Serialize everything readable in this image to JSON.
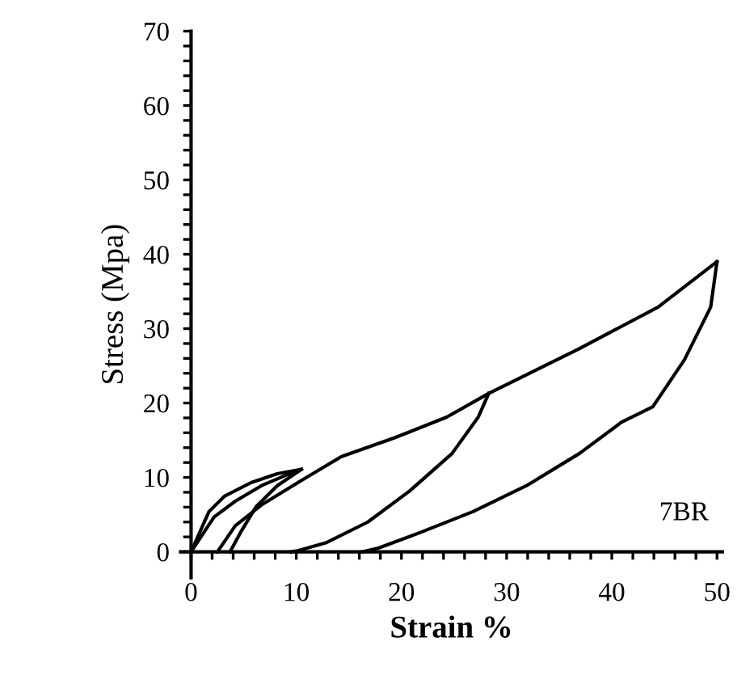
{
  "chart_data": {
    "type": "line",
    "xlabel": "Strain %",
    "ylabel": "Stress (Mpa)",
    "xlim": [
      -1,
      50.5
    ],
    "ylim": [
      -3.5,
      70
    ],
    "xticks": [
      0,
      {
        "value": 2,
        "label": null
      },
      {
        "value": 4,
        "label": null
      },
      {
        "value": 6,
        "label": null
      },
      {
        "value": 8,
        "label": null
      },
      10,
      {
        "value": 12,
        "label": null
      },
      {
        "value": 14,
        "label": null
      },
      {
        "value": 16,
        "label": null
      },
      {
        "value": 18,
        "label": null
      },
      20,
      {
        "value": 22,
        "label": null
      },
      {
        "value": 24,
        "label": null
      },
      {
        "value": 26,
        "label": null
      },
      {
        "value": 28,
        "label": null
      },
      30,
      {
        "value": 32,
        "label": null
      },
      {
        "value": 34,
        "label": null
      },
      {
        "value": 36,
        "label": null
      },
      {
        "value": 38,
        "label": null
      },
      40,
      {
        "value": 42,
        "label": null
      },
      {
        "value": 44,
        "label": null
      },
      {
        "value": 46,
        "label": null
      },
      {
        "value": 48,
        "label": null
      },
      50
    ],
    "yticks": [
      0,
      {
        "value": 2,
        "label": null
      },
      {
        "value": 4,
        "label": null
      },
      {
        "value": 6,
        "label": null
      },
      {
        "value": 8,
        "label": null
      },
      10,
      {
        "value": 12,
        "label": null
      },
      {
        "value": 14,
        "label": null
      },
      {
        "value": 16,
        "label": null
      },
      {
        "value": 18,
        "label": null
      },
      20,
      {
        "value": 22,
        "label": null
      },
      {
        "value": 24,
        "label": null
      },
      {
        "value": 26,
        "label": null
      },
      {
        "value": 28,
        "label": null
      },
      30,
      {
        "value": 32,
        "label": null
      },
      {
        "value": 34,
        "label": null
      },
      {
        "value": 36,
        "label": null
      },
      {
        "value": 38,
        "label": null
      },
      40,
      {
        "value": 42,
        "label": null
      },
      {
        "value": 44,
        "label": null
      },
      {
        "value": 46,
        "label": null
      },
      {
        "value": 48,
        "label": null
      },
      50,
      {
        "value": 52,
        "label": null
      },
      {
        "value": 54,
        "label": null
      },
      {
        "value": 56,
        "label": null
      },
      {
        "value": 58,
        "label": null
      },
      60,
      {
        "value": 62,
        "label": null
      },
      {
        "value": 64,
        "label": null
      },
      {
        "value": 66,
        "label": null
      },
      {
        "value": 68,
        "label": null
      },
      70
    ],
    "grid": false,
    "legend": false,
    "marker": "none",
    "line_style": "solid",
    "annotations": [
      "7BR"
    ],
    "series": [
      {
        "color": "#000000",
        "x": [
          0,
          1.7,
          3.2,
          5.7,
          8.2,
          10.5,
          8.2,
          6.2,
          4.7,
          3.7
        ],
        "values": [
          0,
          5.4,
          7.5,
          9.3,
          10.5,
          11.1,
          8.9,
          6.1,
          2.6,
          0
        ]
      },
      {
        "color": "#000000",
        "x": [
          0,
          2.2,
          4.2,
          6.7,
          9.7,
          10.5
        ],
        "values": [
          0,
          4.7,
          6.8,
          8.9,
          10.7,
          11.1
        ]
      },
      {
        "color": "#000000",
        "x": [
          2.5,
          4.2,
          6.7,
          10.5,
          14.3,
          19.3,
          24.3,
          28.3,
          36.9,
          44.4,
          50
        ],
        "values": [
          0,
          3.5,
          6.3,
          9.6,
          12.8,
          15.3,
          18.1,
          21.3,
          27.3,
          32.9,
          39
        ]
      },
      {
        "color": "#000000",
        "x": [
          28.3,
          27.3,
          24.8,
          20.8,
          16.8,
          12.8,
          10,
          9.5
        ],
        "values": [
          21.3,
          18.1,
          13.2,
          8.2,
          4.0,
          1.2,
          0.1,
          0
        ]
      },
      {
        "color": "#000000",
        "x": [
          50,
          49.4,
          46.9,
          43.9,
          40.9,
          36.9,
          31.9,
          26.8,
          21.8,
          17.8,
          16.3
        ],
        "values": [
          39,
          32.9,
          25.8,
          19.5,
          17.4,
          13.2,
          8.9,
          5.4,
          2.6,
          0.5,
          0
        ]
      }
    ]
  }
}
